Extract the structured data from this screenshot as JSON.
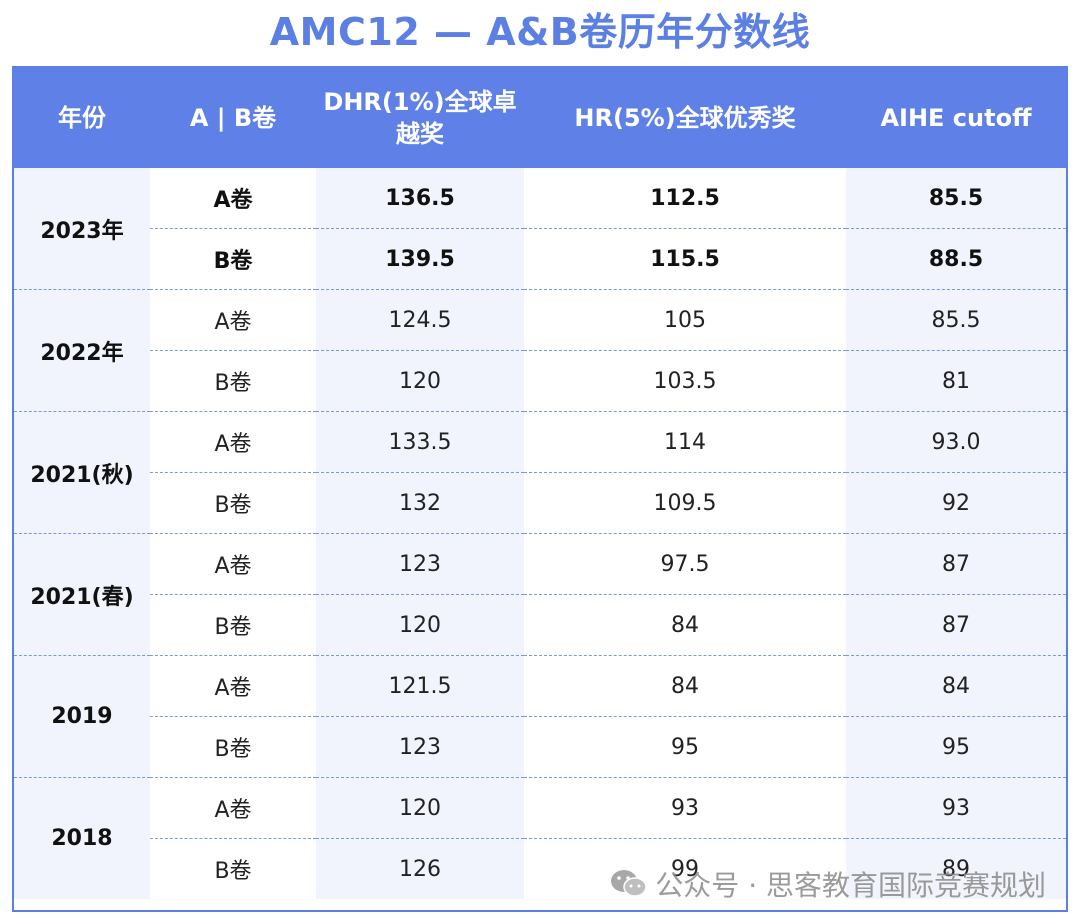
{
  "title": "AMC12 — A&B卷历年分数线",
  "headers": [
    "年份",
    "A | B卷",
    "DHR(1%)全球卓越奖",
    "HR(5%)全球优秀奖",
    "AIHE cutoff"
  ],
  "groups": [
    {
      "year": "2023年",
      "rows": [
        {
          "paper": "A卷",
          "dhr": "136.5",
          "hr": "112.5",
          "aihe": "85.5"
        },
        {
          "paper": "B卷",
          "dhr": "139.5",
          "hr": "115.5",
          "aihe": "88.5"
        }
      ]
    },
    {
      "year": "2022年",
      "rows": [
        {
          "paper": "A卷",
          "dhr": "124.5",
          "hr": "105",
          "aihe": "85.5"
        },
        {
          "paper": "B卷",
          "dhr": "120",
          "hr": "103.5",
          "aihe": "81"
        }
      ]
    },
    {
      "year": "2021(秋)",
      "rows": [
        {
          "paper": "A卷",
          "dhr": "133.5",
          "hr": "114",
          "aihe": "93.0"
        },
        {
          "paper": "B卷",
          "dhr": "132",
          "hr": "109.5",
          "aihe": "92"
        }
      ]
    },
    {
      "year": "2021(春)",
      "rows": [
        {
          "paper": "A卷",
          "dhr": "123",
          "hr": "97.5",
          "aihe": "87"
        },
        {
          "paper": "B卷",
          "dhr": "120",
          "hr": "84",
          "aihe": "87"
        }
      ]
    },
    {
      "year": "2019",
      "rows": [
        {
          "paper": "A卷",
          "dhr": "121.5",
          "hr": "84",
          "aihe": "84"
        },
        {
          "paper": "B卷",
          "dhr": "123",
          "hr": "95",
          "aihe": "95"
        }
      ]
    },
    {
      "year": "2018",
      "rows": [
        {
          "paper": "A卷",
          "dhr": "120",
          "hr": "93",
          "aihe": "93"
        },
        {
          "paper": "B卷",
          "dhr": "126",
          "hr": "99",
          "aihe": "89"
        }
      ]
    }
  ],
  "watermark": {
    "text": "公众号 · 思客教育国际竞赛规划",
    "icon": "wechat-icon"
  },
  "colors": {
    "accent": "#5b7fe3",
    "header_bg": "#5f80e6",
    "stripe": "#f1f4fc",
    "border": "#7d97e0"
  }
}
